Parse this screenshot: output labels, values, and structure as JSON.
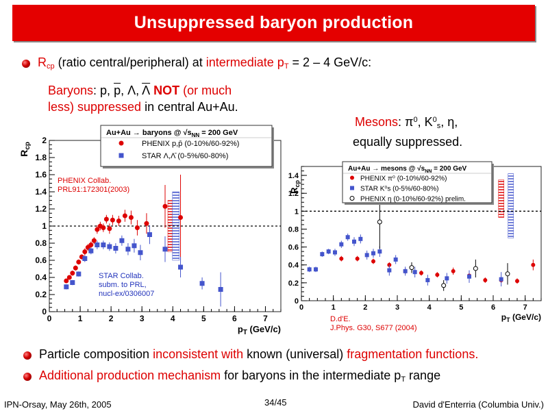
{
  "title": "Unsuppressed baryon production",
  "bullets": {
    "b1_pre": "R",
    "b1_sub": "cp",
    "b1_mid": " (ratio central/peripheral) at ",
    "b1_red": "intermediate p",
    "b1_redsub": "T",
    "b1_post": " = 2 – 4 GeV/c:",
    "b2_a": "Particle composition ",
    "b2_b": "inconsistent with",
    "b2_c": " known (universal) ",
    "b2_d": "fragmentation functions.",
    "b3_a": "Additional production mechanism",
    "b3_b": " for baryons in the intermediate p",
    "b3_sub": "T",
    "b3_c": " range"
  },
  "baryon_note": {
    "l1_red": "Baryons",
    "l1_a": ":  p, ",
    "l1_pbar": "p",
    "l1_b": ", Λ, ",
    "l1_lbar": "Λ",
    "l1_not": " NOT",
    "l1_c": " (or much",
    "l2_red": "less) suppressed",
    "l2_b": " in central Au+Au."
  },
  "meson_note": {
    "l1_red": "Mesons",
    "l1_a": ":  π",
    "l1_sup0": "0",
    "l1_b": ", K",
    "l1_sup1": "0",
    "l1_sub1": "s",
    "l1_c": ", η,",
    "l2": "equally suppressed."
  },
  "footer": {
    "left": "IPN-Orsay, May 26th, 2005",
    "center": "34/45",
    "right": "David d'Enterria (Columbia Univ.)"
  },
  "colors": {
    "red": "#dd0000",
    "blue": "#4455cc",
    "banner": "#e40000"
  },
  "chart_data": [
    {
      "type": "scatter",
      "ylabel_main": "R",
      "ylabel_sub": "cp",
      "xlabel_main": "p",
      "xlabel_sub": "T",
      "xlabel_unit": " (GeV/c)",
      "xlim": [
        0,
        7.5
      ],
      "ylim": [
        0,
        2
      ],
      "xticks": [
        "0",
        "1",
        "2",
        "3",
        "4",
        "5",
        "6",
        "7"
      ],
      "yticks": [
        "0",
        "0.2",
        "0.4",
        "0.6",
        "0.8",
        "1",
        "1.2",
        "1.4",
        "1.6",
        "1.8",
        "2"
      ],
      "reference_line": 1,
      "legend_title": "Au+Au → baryons @ √s",
      "legend_title_sub": "NN",
      "legend_title_post": " = 200 GeV",
      "annotation_phenix": [
        "PHENIX Collab.",
        "PRL91:172301(2003)"
      ],
      "annotation_star": [
        "STAR Collab.",
        "subm. to PRL,",
        "nucl-ex/0306007"
      ],
      "series": [
        {
          "name": "PHENIX p,p̄ (0-10%/60-92%)",
          "marker": "circle",
          "color": "#dd0000",
          "points": [
            [
              0.55,
              0.36,
              0.02
            ],
            [
              0.65,
              0.4,
              0.02
            ],
            [
              0.75,
              0.45,
              0.03
            ],
            [
              0.85,
              0.51,
              0.03
            ],
            [
              0.95,
              0.58,
              0.03
            ],
            [
              1.05,
              0.64,
              0.03
            ],
            [
              1.15,
              0.7,
              0.04
            ],
            [
              1.25,
              0.75,
              0.04
            ],
            [
              1.35,
              0.78,
              0.04
            ],
            [
              1.45,
              0.83,
              0.04
            ],
            [
              1.55,
              0.96,
              0.05
            ],
            [
              1.65,
              1.0,
              0.05
            ],
            [
              1.75,
              0.98,
              0.05
            ],
            [
              1.85,
              1.08,
              0.05
            ],
            [
              1.95,
              0.97,
              0.06
            ],
            [
              2.05,
              1.07,
              0.06
            ],
            [
              2.25,
              1.06,
              0.06
            ],
            [
              2.45,
              1.12,
              0.07
            ],
            [
              2.65,
              1.1,
              0.08
            ],
            [
              2.85,
              0.98,
              0.09
            ],
            [
              3.15,
              1.03,
              0.12
            ],
            [
              3.75,
              1.23,
              0.25
            ],
            [
              4.25,
              1.1,
              0.5
            ]
          ]
        },
        {
          "name": "STAR Λ,Λ̄ (0-5%/60-80%)",
          "marker": "square",
          "color": "#4455cc",
          "points": [
            [
              0.55,
              0.29,
              0.03
            ],
            [
              0.75,
              0.34,
              0.03
            ],
            [
              0.95,
              0.44,
              0.03
            ],
            [
              1.15,
              0.62,
              0.04
            ],
            [
              1.35,
              0.71,
              0.04
            ],
            [
              1.55,
              0.78,
              0.05
            ],
            [
              1.75,
              0.78,
              0.05
            ],
            [
              1.95,
              0.76,
              0.05
            ],
            [
              2.15,
              0.74,
              0.06
            ],
            [
              2.35,
              0.83,
              0.06
            ],
            [
              2.55,
              0.73,
              0.07
            ],
            [
              2.75,
              0.77,
              0.08
            ],
            [
              2.95,
              0.69,
              0.09
            ],
            [
              3.25,
              0.9,
              0.11
            ],
            [
              3.75,
              0.73,
              0.15
            ],
            [
              4.25,
              0.52,
              0.12
            ],
            [
              4.95,
              0.33,
              0.07
            ],
            [
              5.55,
              0.26,
              0.2
            ]
          ]
        }
      ]
    },
    {
      "type": "scatter",
      "ylabel_main": "R",
      "ylabel_sub": "cp",
      "xlabel_main": "p",
      "xlabel_sub": "T",
      "xlabel_unit": " (GeV/c)",
      "xlim": [
        0,
        7.5
      ],
      "ylim": [
        0,
        1.5
      ],
      "xticks": [
        "0",
        "1",
        "2",
        "3",
        "4",
        "5",
        "6",
        "7"
      ],
      "yticks": [
        "0",
        "0.2",
        "0.4",
        "0.6",
        "0.8",
        "1",
        "1.2",
        "1.4"
      ],
      "reference_line": 1,
      "legend_title": "Au+Au → mesons @ √s",
      "legend_title_sub": "NN",
      "legend_title_post": " = 200 GeV",
      "annotation_dde": [
        "D.d'E.",
        "J.Phys. G30, S677 (2004)"
      ],
      "series": [
        {
          "name": "PHENIX π⁰ (0-10%/60-92%)",
          "marker": "circle",
          "color": "#dd0000",
          "points": [
            [
              1.25,
              0.47,
              0.03
            ],
            [
              1.75,
              0.47,
              0.03
            ],
            [
              2.25,
              0.44,
              0.03
            ],
            [
              2.75,
              0.4,
              0.03
            ],
            [
              3.25,
              0.33,
              0.03
            ],
            [
              3.75,
              0.31,
              0.03
            ],
            [
              4.25,
              0.29,
              0.03
            ],
            [
              4.75,
              0.33,
              0.04
            ],
            [
              5.25,
              0.28,
              0.04
            ],
            [
              5.75,
              0.23,
              0.03
            ],
            [
              6.25,
              0.23,
              0.03
            ],
            [
              6.75,
              0.22,
              0.03
            ],
            [
              7.25,
              0.4,
              0.06
            ]
          ]
        },
        {
          "name": "STAR K⁰s (0-5%/60-80%)",
          "marker": "square",
          "color": "#4455cc",
          "points": [
            [
              0.25,
              0.35,
              0.03
            ],
            [
              0.45,
              0.35,
              0.03
            ],
            [
              0.65,
              0.52,
              0.03
            ],
            [
              0.85,
              0.55,
              0.03
            ],
            [
              1.05,
              0.54,
              0.04
            ],
            [
              1.25,
              0.63,
              0.04
            ],
            [
              1.45,
              0.71,
              0.04
            ],
            [
              1.65,
              0.66,
              0.05
            ],
            [
              1.85,
              0.69,
              0.05
            ],
            [
              2.05,
              0.51,
              0.05
            ],
            [
              2.25,
              0.53,
              0.05
            ],
            [
              2.45,
              0.55,
              0.06
            ],
            [
              2.75,
              0.34,
              0.06
            ],
            [
              2.95,
              0.46,
              0.05
            ],
            [
              3.25,
              0.33,
              0.05
            ],
            [
              3.55,
              0.32,
              0.06
            ],
            [
              3.95,
              0.23,
              0.06
            ],
            [
              4.55,
              0.25,
              0.06
            ],
            [
              5.25,
              0.27,
              0.07
            ],
            [
              6.25,
              0.24,
              0.08
            ]
          ]
        },
        {
          "name": "PHENIX η (0-10%/60-92%) prelim.",
          "marker": "open-circle",
          "color": "#000000",
          "points": [
            [
              2.45,
              0.88,
              0.3
            ],
            [
              3.45,
              0.37,
              0.06
            ],
            [
              4.45,
              0.17,
              0.06
            ],
            [
              5.45,
              0.36,
              0.1
            ],
            [
              6.45,
              0.3,
              0.12
            ]
          ]
        }
      ]
    }
  ]
}
